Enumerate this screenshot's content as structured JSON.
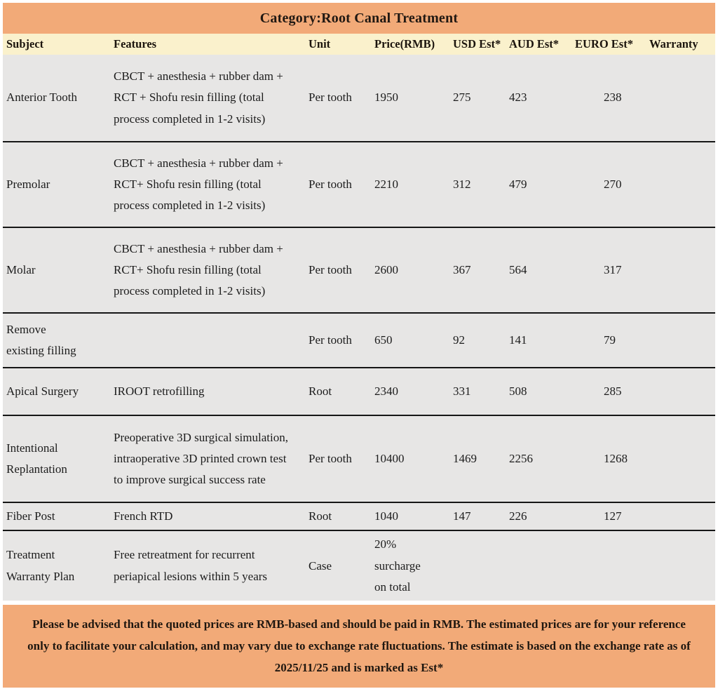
{
  "header": {
    "title": "Category:Root Canal Treatment"
  },
  "table": {
    "columns": [
      "Subject",
      "Features",
      "Unit",
      "Price(RMB)",
      "USD Est*",
      "AUD Est*",
      "EURO Est*",
      "Warranty"
    ],
    "rows": [
      {
        "subject": "Anterior Tooth",
        "features": "CBCT + anesthesia + rubber dam + RCT + Shofu resin filling (total process completed in 1-2 visits)",
        "unit": "Per tooth",
        "price_rmb": "1950",
        "usd_est": "275",
        "aud_est": "423",
        "euro_est": "238",
        "warranty": ""
      },
      {
        "subject": "Premolar",
        "features": "CBCT + anesthesia + rubber dam + RCT+ Shofu resin filling (total process completed in 1-2 visits)",
        "unit": "Per tooth",
        "price_rmb": "2210",
        "usd_est": "312",
        "aud_est": "479",
        "euro_est": "270",
        "warranty": ""
      },
      {
        "subject": "Molar",
        "features": "CBCT + anesthesia + rubber dam + RCT+ Shofu resin filling (total process completed in 1-2 visits)",
        "unit": "Per tooth",
        "price_rmb": "2600",
        "usd_est": "367",
        "aud_est": "564",
        "euro_est": "317",
        "warranty": ""
      },
      {
        "subject": "Remove existing filling",
        "features": "",
        "unit": "Per tooth",
        "price_rmb": "650",
        "usd_est": "92",
        "aud_est": "141",
        "euro_est": "79",
        "warranty": ""
      },
      {
        "subject": "Apical Surgery",
        "features": "IROOT retrofilling",
        "unit": "Root",
        "price_rmb": "2340",
        "usd_est": "331",
        "aud_est": "508",
        "euro_est": "285",
        "warranty": ""
      },
      {
        "subject": "Intentional Replantation",
        "features": "Preoperative 3D surgical simulation, intraoperative 3D printed crown test to improve surgical success rate",
        "unit": "Per tooth",
        "price_rmb": "10400",
        "usd_est": "1469",
        "aud_est": "2256",
        "euro_est": "1268",
        "warranty": ""
      },
      {
        "subject": "Fiber Post",
        "features": "French RTD",
        "unit": "Root",
        "price_rmb": "1040",
        "usd_est": "147",
        "aud_est": "226",
        "euro_est": "127",
        "warranty": ""
      },
      {
        "subject": "Treatment Warranty Plan",
        "features": "Free retreatment for recurrent periapical lesions within 5 years",
        "unit": "Case",
        "price_rmb": "20% surcharge on total",
        "usd_est": "",
        "aud_est": "",
        "euro_est": "",
        "warranty": ""
      }
    ]
  },
  "footer": {
    "note": "Please be advised that the quoted prices are RMB-based and should be paid in RMB. The estimated prices are for your reference only to facilitate your calculation, and may vary due to exchange rate fluctuations. The estimate is based on the exchange rate as of 2025/11/25 and is marked as Est*"
  },
  "colors": {
    "banner_bg": "#F2AA78",
    "column_header_bg": "#FAF1CC",
    "row_bg": "#E7E6E5",
    "row_border": "#161616",
    "footer_bg": "#F2AA78",
    "text": "#1C1C1C"
  }
}
